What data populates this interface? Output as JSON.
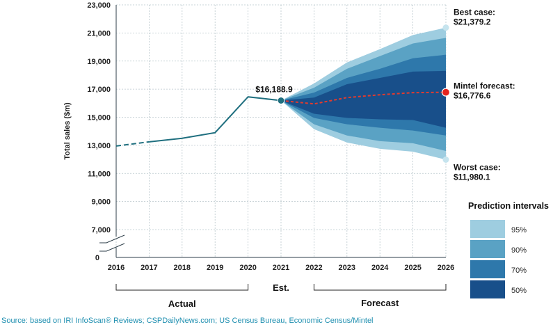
{
  "chart_data": {
    "type": "area",
    "ylabel": "Total sales ($m)",
    "ylim": [
      7000,
      23000
    ],
    "y_ticks": [
      {
        "value": 23000,
        "label": "23,000"
      },
      {
        "value": 21000,
        "label": "21,000"
      },
      {
        "value": 19000,
        "label": "19,000"
      },
      {
        "value": 17000,
        "label": "17,000"
      },
      {
        "value": 15000,
        "label": "15,000"
      },
      {
        "value": 13000,
        "label": "13,000"
      },
      {
        "value": 11000,
        "label": "11,000"
      },
      {
        "value": 9000,
        "label": "9,000"
      },
      {
        "value": 7000,
        "label": "7,000"
      }
    ],
    "y_zero_label": "0",
    "x_ticks": [
      "2016",
      "2017",
      "2018",
      "2019",
      "2020",
      "2021",
      "2022",
      "2023",
      "2024",
      "2025",
      "2026"
    ],
    "grid": true,
    "actual_series": {
      "name": "Actual",
      "x": [
        2016,
        2017,
        2018,
        2019,
        2020,
        2021
      ],
      "values": [
        12950,
        13250,
        13500,
        13900,
        16450,
        16188.9
      ],
      "dashed_segment": [
        2016,
        2017
      ]
    },
    "forecast_series": {
      "name": "Mintel forecast",
      "x": [
        2021,
        2022,
        2023,
        2024,
        2025,
        2026
      ],
      "values": [
        16188.9,
        15950,
        16400,
        16600,
        16750,
        16776.6
      ]
    },
    "prediction_intervals": [
      {
        "label": "95%",
        "color": "#9ecde0",
        "upper": [
          16188.9,
          17400,
          18900,
          19850,
          20850,
          21379.2
        ],
        "lower": [
          16188.9,
          14150,
          13200,
          12750,
          12550,
          11980.1
        ]
      },
      {
        "label": "90%",
        "color": "#5aa2c4",
        "upper": [
          16188.9,
          17100,
          18450,
          19350,
          20250,
          20650
        ],
        "lower": [
          16188.9,
          14500,
          13700,
          13300,
          13150,
          12600
        ]
      },
      {
        "label": "70%",
        "color": "#2e78ab",
        "upper": [
          16188.9,
          16750,
          17800,
          18450,
          19200,
          19450
        ],
        "lower": [
          16188.9,
          14950,
          14500,
          14250,
          14050,
          13700
        ]
      },
      {
        "label": "50%",
        "color": "#184f8a",
        "upper": [
          16188.9,
          16400,
          17350,
          17800,
          18250,
          18300
        ],
        "lower": [
          16188.9,
          15250,
          14950,
          14850,
          14800,
          14250
        ]
      }
    ],
    "annotations": {
      "point_2021": "$16,188.9",
      "best_case_title": "Best case:",
      "best_case_value": "$21,379.2",
      "forecast_title": "Mintel forecast:",
      "forecast_value": "$16,776.6",
      "worst_case_title": "Worst case:",
      "worst_case_value": "$11,980.1"
    },
    "period_labels": {
      "actual": "Actual",
      "estimate": "Est.",
      "forecast": "Forecast"
    },
    "legend_title": "Prediction intervals",
    "colors": {
      "actual_line": "#1f6f7f",
      "forecast_line": "#e23b2e",
      "forecast_dot": "#e4231f",
      "case_dot": "#c6e4ee"
    }
  },
  "source": "Source: based on IRI InfoScan® Reviews; CSPDailyNews.com; US Census Bureau, Economic Census/Mintel"
}
